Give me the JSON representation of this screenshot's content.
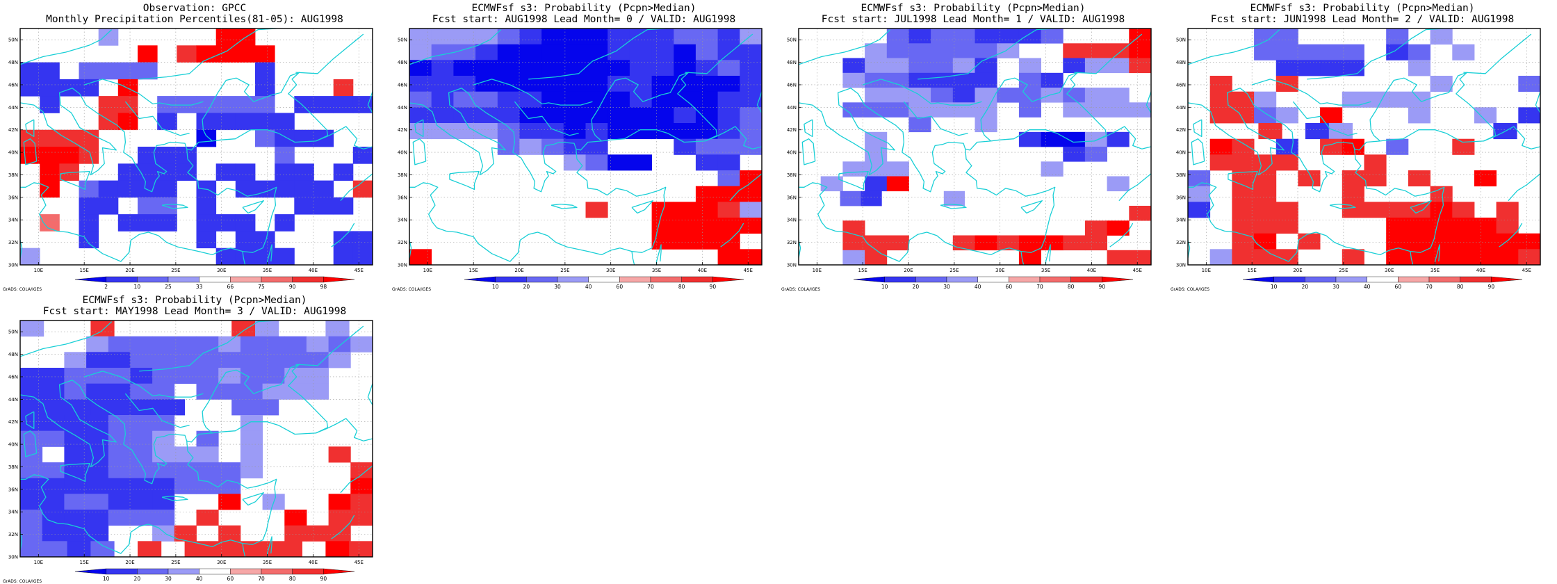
{
  "chart_data": [
    {
      "type": "heatmap",
      "title_line1": "Observation: GPCC",
      "title_line2": "Monthly Precipitation Percentiles(81-05): AUG1998",
      "x_tick_labels": [
        "10E",
        "15E",
        "20E",
        "25E",
        "30E",
        "35E",
        "40E",
        "45E"
      ],
      "y_tick_labels": [
        "30N",
        "32N",
        "34N",
        "36N",
        "38N",
        "40N",
        "42N",
        "44N",
        "46N",
        "48N",
        "50N"
      ],
      "colorbar": {
        "labels": [
          "2",
          "10",
          "25",
          "33",
          "66",
          "75",
          "90",
          "98"
        ],
        "colors": [
          "#0505ec",
          "#3535f0",
          "#6868f3",
          "#9b9bf6",
          "#ffffff",
          "#f6a7a7",
          "#f36c6c",
          "#f03030",
          "#ff0000"
        ]
      },
      "credit": "GrADS: COLA/IGES",
      "grid": "30W..30N,30E..30N",
      "cell_size_degrees": 2.5,
      "lon_range": [
        8,
        46.5
      ],
      "lat_range": [
        30,
        51
      ],
      "cells": [
        "....3.....88......",
        "......7.67777.....",
        "11.2222.....1.....",
        "1111.7......1...6.",
        ".1..66.222222.1111",
        "....67.1.11111....",
        "6666.....0..2111..",
        "7776..111....2...1",
        ".76..1111.11.11.1.",
        ".7.21111.1.11111.6",
        "...11.22.1....111.",
        ".5.1.111.111.1....",
        "...1.....1.11...11",
        "3.........1111..11"
      ]
    },
    {
      "type": "heatmap",
      "title_line1": "ECMWFsf s3: Probability (Pcpn>Median)",
      "title_line2": "Fcst start: AUG1998  Lead Month= 0 / VALID: AUG1998",
      "x_tick_labels": [
        "10E",
        "15E",
        "20E",
        "25E",
        "30E",
        "35E",
        "40E",
        "45E"
      ],
      "y_tick_labels": [
        "30N",
        "32N",
        "34N",
        "36N",
        "38N",
        "40N",
        "42N",
        "44N",
        "46N",
        "48N",
        "50N"
      ],
      "colorbar": {
        "labels": [
          "10",
          "20",
          "30",
          "40",
          "60",
          "70",
          "80",
          "90"
        ],
        "colors": [
          "#0505ec",
          "#3535f0",
          "#6868f3",
          "#9b9bf6",
          "#ffffff",
          "#f6a7a7",
          "#f36c6c",
          "#f03030",
          "#ff0000"
        ]
      },
      "credit": "GrADS: COLA/IGES",
      "cell_size_degrees": 2.5,
      "lon_range": [
        8,
        46.5
      ],
      "lat_range": [
        30,
        51
      ],
      "cells": [
        "3333210001112213",
        "3221000001110211",
        "0100000000110121",
        "1110000001100001",
        "2122110000100011",
        "1111100000001012",
        "3333211010000012",
        "....23211...1222",
        ".......3200..11.",
        "..............27",
        ".............778",
        "........6..77763",
        "...........88887",
        "...........8887.",
        "7.............88"
      ]
    },
    {
      "type": "heatmap",
      "title_line1": "ECMWFsf s3: Probability (Pcpn>Median)",
      "title_line2": "Fcst start: JUL1998  Lead Month= 1 / VALID: AUG1998",
      "x_tick_labels": [
        "10E",
        "15E",
        "20E",
        "25E",
        "30E",
        "35E",
        "40E",
        "45E"
      ],
      "y_tick_labels": [
        "30N",
        "32N",
        "34N",
        "36N",
        "38N",
        "40N",
        "42N",
        "44N",
        "46N",
        "48N",
        "50N"
      ],
      "colorbar": {
        "labels": [
          "10",
          "20",
          "30",
          "40",
          "60",
          "70",
          "80",
          "90"
        ],
        "colors": [
          "#0505ec",
          "#3535f0",
          "#6868f3",
          "#9b9bf6",
          "#ffffff",
          "#f6a7a7",
          "#f36c6c",
          "#f03030",
          "#ff0000"
        ]
      },
      "credit": "GrADS: COLA/IGES",
      "cell_size_degrees": 2.5,
      "lon_range": [
        8,
        46.5
      ],
      "lat_range": [
        30,
        51
      ],
      "cells": [
        "....21221112...8",
        "...3222223..6667",
        "..1332231.3.1336",
        "..3221111.21....",
        "...333213223233.",
        "..2223333.2.3333",
        ".....2..3.......",
        "...3......10031.",
        "...3........12..",
        "..333......3....",
        ".3.17.........3.",
        "..21...3.........",
        "...............6",
        "..6..........67.",
        "..666..6767766..",
        "..36......7...66"
      ]
    },
    {
      "type": "heatmap",
      "title_line1": "ECMWFsf s3: Probability (Pcpn>Median)",
      "title_line2": "Fcst start: JUN1998  Lead Month= 2 / VALID: AUG1998",
      "x_tick_labels": [
        "10E",
        "15E",
        "20E",
        "25E",
        "30E",
        "35E",
        "40E",
        "45E"
      ],
      "y_tick_labels": [
        "30N",
        "32N",
        "34N",
        "36N",
        "38N",
        "40N",
        "42N",
        "44N",
        "46N",
        "48N",
        "50N"
      ],
      "colorbar": {
        "labels": [
          "10",
          "20",
          "30",
          "40",
          "60",
          "70",
          "80",
          "90"
        ],
        "colors": [
          "#0505ec",
          "#3535f0",
          "#6868f3",
          "#9b9bf6",
          "#ffffff",
          "#f6a7a7",
          "#f36c6c",
          "#f03030",
          "#ff0000"
        ]
      },
      "credit": "GrADS: COLA/IGES",
      "cell_size_degrees": 2.5,
      "lon_range": [
        8,
        46.5
      ],
      "lat_range": [
        30,
        51
      ],
      "cells": [
        "...22....2.3....",
        "...22222.12.3...",
        "....1111..3.....",
        ".6..6......3...2",
        ".663...3333.....",
        ".6623.8...3..3.1",
        "...6.13......1.",
        ".76.1.67.2..6...",
        ".6666...6.......",
        "2.66.6.66.6..7..",
        "3.66...6...6....",
        "1.666..666676.6.",
        "..666....877776.",
        "..67.6...8888888",
        ".3666..6.8887886"
      ]
    },
    {
      "type": "heatmap",
      "title_line1": "ECMWFsf s3: Probability (Pcpn>Median)",
      "title_line2": "Fcst start: MAY1998  Lead Month= 3 / VALID: AUG1998",
      "x_tick_labels": [
        "10E",
        "15E",
        "20E",
        "25E",
        "30E",
        "35E",
        "40E",
        "45E"
      ],
      "y_tick_labels": [
        "30N",
        "32N",
        "34N",
        "36N",
        "38N",
        "40N",
        "42N",
        "44N",
        "46N",
        "48N",
        "50N"
      ],
      "colorbar": {
        "labels": [
          "10",
          "20",
          "30",
          "40",
          "60",
          "70",
          "80",
          "90"
        ],
        "colors": [
          "#0505ec",
          "#3535f0",
          "#6868f3",
          "#9b9bf6",
          "#ffffff",
          "#f6a7a7",
          "#f36c6c",
          "#f03030",
          "#ff0000"
        ]
      },
      "credit": "GrADS: COLA/IGES",
      "cell_size_degrees": 2.5,
      "lon_range": [
        8,
        46.5
      ],
      "lat_range": [
        30,
        51
      ],
      "cells": [
        "3..6.....63..3.",
        "...3222223222323",
        "..3112222222223.",
        "11222122232233..",
        "1121122.222333..",
        "1111111..22....",
        "1111222...3.....",
        "2211223.2.3.....",
        "2.1122333.3...6.",
        "22112222223....6",
        "1111111222.....7",
        "1122111..7.3..76",
        "2111222.6...7.66",
        "2111..36.6..666.",
        "2212.6.66666.76"
      ]
    }
  ]
}
